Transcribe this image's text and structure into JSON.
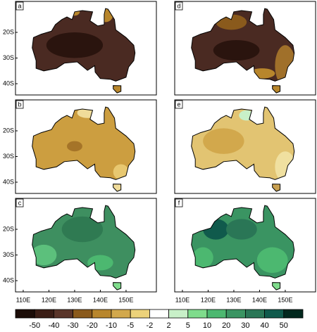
{
  "panels": [
    {
      "label": "a"
    },
    {
      "label": "b"
    },
    {
      "label": "c"
    },
    {
      "label": "d"
    },
    {
      "label": "e"
    },
    {
      "label": "f"
    }
  ],
  "lat_labels": [
    "20S",
    "30S",
    "40S"
  ],
  "lon_labels": [
    "110E",
    "120E",
    "130E",
    "140E",
    "150E"
  ],
  "colorbar": {
    "labels": [
      -50,
      -40,
      -30,
      -20,
      -10,
      -5,
      -2,
      2,
      5,
      10,
      20,
      30,
      40,
      50
    ],
    "colors": [
      "#1c0d08",
      "#3b1e16",
      "#5a352a",
      "#8a5a1c",
      "#b8862c",
      "#d2a84c",
      "#ecd27a",
      "#ffffff",
      "#c8f0c8",
      "#7fdc8c",
      "#4cb870",
      "#3a9462",
      "#2a7656",
      "#105a4c",
      "#02281e"
    ]
  }
}
